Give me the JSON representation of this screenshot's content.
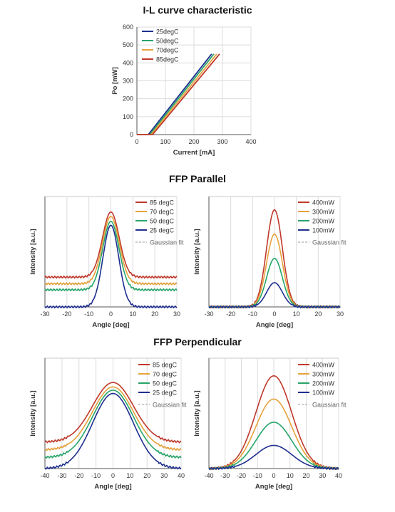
{
  "sections": {
    "il_title": "I-L curve characteristic",
    "ffp_par_title": "FFP Parallel",
    "ffp_perp_title": "FFP Perpendicular"
  },
  "colors": {
    "c85": "#c0392b",
    "c70": "#e6a23c",
    "c50": "#27a56a",
    "c25": "#1f2f8f",
    "fit": "#999999"
  },
  "chart_data": [
    {
      "id": "il",
      "type": "line",
      "title": "I-L curve characteristic",
      "xlabel": "Current [mA]",
      "ylabel": "Po [mW]",
      "xlim": [
        0,
        400
      ],
      "ylim": [
        0,
        600
      ],
      "xticks": [
        0,
        100,
        200,
        300,
        400
      ],
      "yticks": [
        0,
        100,
        200,
        300,
        400,
        500,
        600
      ],
      "grid": true,
      "legend": "top-left",
      "series": [
        {
          "name": "25degC",
          "color": "#1f2f8f",
          "x": [
            0,
            40,
            262
          ],
          "y": [
            0,
            0,
            450
          ]
        },
        {
          "name": "50degC",
          "color": "#27a56a",
          "x": [
            0,
            45,
            270
          ],
          "y": [
            0,
            0,
            450
          ]
        },
        {
          "name": "70degC",
          "color": "#e6a23c",
          "x": [
            0,
            50,
            280
          ],
          "y": [
            0,
            0,
            450
          ]
        },
        {
          "name": "85degC",
          "color": "#c0392b",
          "x": [
            0,
            55,
            290
          ],
          "y": [
            0,
            0,
            450
          ]
        }
      ]
    },
    {
      "id": "par_temp",
      "type": "line",
      "xlabel": "Angle [deg]",
      "ylabel": "Intensity [a.u.]",
      "xlim": [
        -30,
        30
      ],
      "ylim": [
        0,
        1.0
      ],
      "xticks": [
        -30,
        -20,
        -10,
        0,
        10,
        20,
        30
      ],
      "grid": "vertical",
      "legend": "top-right",
      "fit_label": "Gaussian fit",
      "series": [
        {
          "name": "85 degC",
          "color": "#c0392b",
          "center": 0,
          "offset": 0.27,
          "amplitude": 0.59,
          "sigma": 3.8
        },
        {
          "name": "70 degC",
          "color": "#e6a23c",
          "center": 0,
          "offset": 0.21,
          "amplitude": 0.61,
          "sigma": 3.8
        },
        {
          "name": "50 degC",
          "color": "#27a56a",
          "center": 0,
          "offset": 0.155,
          "amplitude": 0.62,
          "sigma": 3.7
        },
        {
          "name": "25 degC",
          "color": "#1f2f8f",
          "center": 0,
          "offset": 0.0,
          "amplitude": 0.74,
          "sigma": 3.6
        }
      ]
    },
    {
      "id": "par_power",
      "type": "line",
      "xlabel": "Angle [deg]",
      "ylabel": "Intensity [a.u.]",
      "xlim": [
        -30,
        30
      ],
      "ylim": [
        0,
        1.0
      ],
      "xticks": [
        -30,
        -20,
        -10,
        0,
        10,
        20,
        30
      ],
      "grid": "vertical",
      "legend": "top-right",
      "fit_label": "Gaussian fit",
      "series": [
        {
          "name": "400mW",
          "color": "#c0392b",
          "center": 0,
          "offset": 0.0,
          "amplitude": 0.88,
          "sigma": 3.6
        },
        {
          "name": "300mW",
          "color": "#e6a23c",
          "center": 0,
          "offset": 0.0,
          "amplitude": 0.66,
          "sigma": 3.6
        },
        {
          "name": "200mW",
          "color": "#27a56a",
          "center": 0,
          "offset": 0.0,
          "amplitude": 0.44,
          "sigma": 3.6
        },
        {
          "name": "100mW",
          "color": "#1f2f8f",
          "center": 0,
          "offset": 0.0,
          "amplitude": 0.22,
          "sigma": 3.6
        }
      ]
    },
    {
      "id": "perp_temp",
      "type": "line",
      "xlabel": "Angle [deg]",
      "ylabel": "Intensity [a.u.]",
      "xlim": [
        -40,
        40
      ],
      "ylim": [
        0,
        1.0
      ],
      "xticks": [
        -40,
        -30,
        -20,
        -10,
        0,
        10,
        20,
        30,
        40
      ],
      "grid": "vertical",
      "legend": "top-right",
      "fit_label": "Gaussian fit",
      "series": [
        {
          "name": "85 degC",
          "color": "#c0392b",
          "center": 0,
          "offset": 0.24,
          "amplitude": 0.54,
          "sigma": 12
        },
        {
          "name": "70 degC",
          "color": "#e6a23c",
          "center": 0,
          "offset": 0.17,
          "amplitude": 0.57,
          "sigma": 12
        },
        {
          "name": "50 degC",
          "color": "#27a56a",
          "center": 0,
          "offset": 0.1,
          "amplitude": 0.61,
          "sigma": 12
        },
        {
          "name": "25 degC",
          "color": "#1f2f8f",
          "center": 0,
          "offset": 0.0,
          "amplitude": 0.68,
          "sigma": 12
        }
      ]
    },
    {
      "id": "perp_power",
      "type": "line",
      "xlabel": "Angle [deg]",
      "ylabel": "Intensity [a.u.]",
      "xlim": [
        -40,
        40
      ],
      "ylim": [
        0,
        1.0
      ],
      "xticks": [
        -40,
        -30,
        -20,
        -10,
        0,
        10,
        20,
        30,
        40
      ],
      "grid": "vertical",
      "legend": "top-right",
      "fit_label": "Gaussian fit",
      "series": [
        {
          "name": "400mW",
          "color": "#c0392b",
          "center": 0,
          "offset": 0.0,
          "amplitude": 0.84,
          "sigma": 11
        },
        {
          "name": "300mW",
          "color": "#e6a23c",
          "center": 0,
          "offset": 0.0,
          "amplitude": 0.63,
          "sigma": 11
        },
        {
          "name": "200mW",
          "color": "#27a56a",
          "center": 0,
          "offset": 0.0,
          "amplitude": 0.42,
          "sigma": 11
        },
        {
          "name": "100mW",
          "color": "#1f2f8f",
          "center": 0,
          "offset": 0.0,
          "amplitude": 0.21,
          "sigma": 11
        }
      ]
    }
  ]
}
